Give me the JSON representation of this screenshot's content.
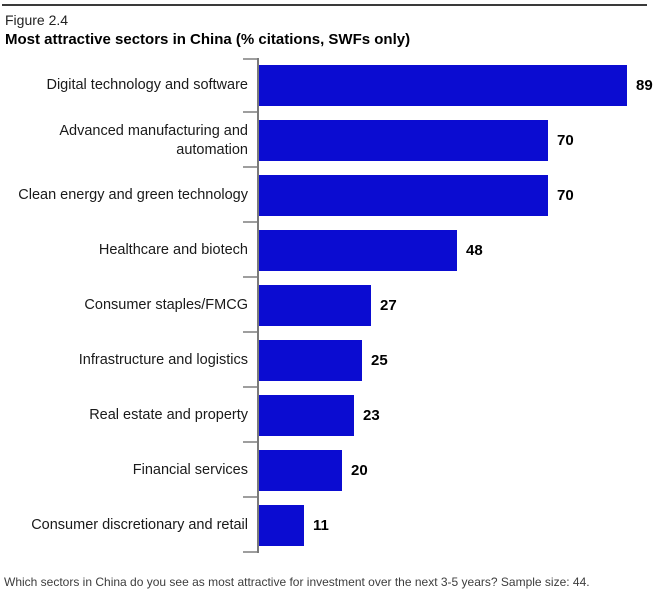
{
  "figure": {
    "label": "Figure 2.4",
    "title": "Most attractive sectors in China (% citations, SWFs only)"
  },
  "chart_data": {
    "type": "bar",
    "orientation": "horizontal",
    "title": "Most attractive sectors in China (% citations, SWFs only)",
    "categories": [
      "Digital technology and software",
      "Advanced manufacturing and automation",
      "Clean energy and green technology",
      "Healthcare and biotech",
      "Consumer staples/FMCG",
      "Infrastructure and logistics",
      "Real estate and property",
      "Financial services",
      "Consumer discretionary and retail"
    ],
    "values": [
      89,
      70,
      70,
      48,
      27,
      25,
      23,
      20,
      11
    ],
    "xlim": [
      0,
      100
    ],
    "grid": false,
    "legend": "none",
    "bar_color": "#0b0cd1",
    "axis_line_color": "#7a7a7a",
    "tick_color": "#9e9e9e"
  },
  "footer": {
    "note": "Which sectors in China do you see as most attractive for investment over the next 3-5 years? Sample size: 44."
  }
}
